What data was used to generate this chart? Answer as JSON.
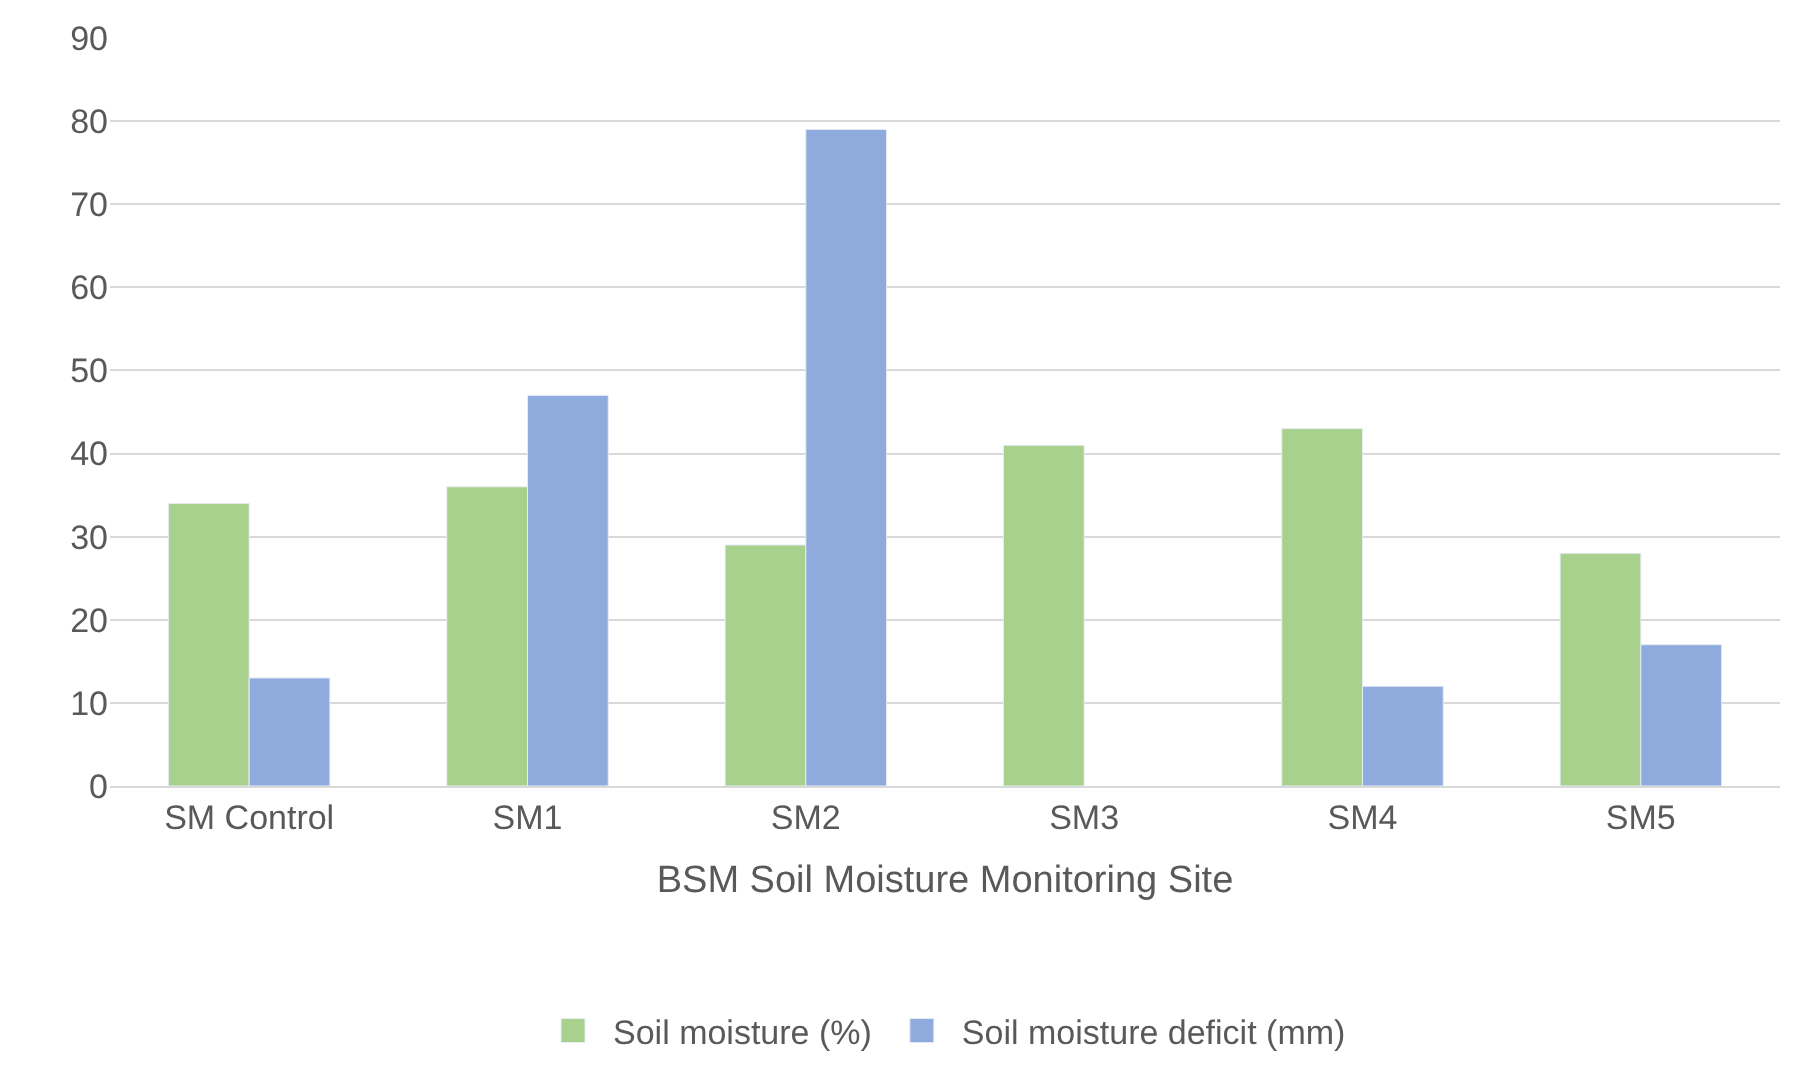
{
  "chart_data": {
    "type": "bar",
    "xlabel": "BSM Soil Moisture Monitoring Site",
    "categories": [
      "SM Control",
      "SM1",
      "SM2",
      "SM3",
      "SM4",
      "SM5"
    ],
    "series": [
      {
        "name": "Soil moisture (%)",
        "color": "#a9d18e",
        "values": [
          34,
          36,
          29,
          41,
          43,
          28
        ]
      },
      {
        "name": "Soil moisture deficit (mm)",
        "color": "#8faadc",
        "values": [
          13,
          47,
          79,
          null,
          12,
          17
        ]
      }
    ],
    "ylim": [
      0,
      90
    ],
    "yticks": [
      0,
      10,
      20,
      30,
      40,
      50,
      60,
      70,
      80,
      90
    ],
    "grid": "y",
    "legend": "bottom"
  }
}
